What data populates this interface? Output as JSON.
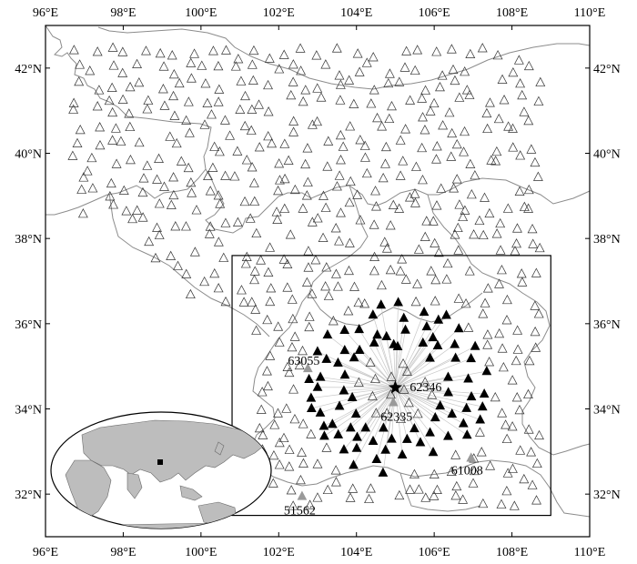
{
  "map": {
    "lon_range": [
      96,
      110
    ],
    "lat_range": [
      31,
      43
    ],
    "x_ticks": [
      {
        "value": 96,
        "label": "96°E"
      },
      {
        "value": 98,
        "label": "98°E"
      },
      {
        "value": 100,
        "label": "100°E"
      },
      {
        "value": 102,
        "label": "102°E"
      },
      {
        "value": 104,
        "label": "104°E"
      },
      {
        "value": 106,
        "label": "106°E"
      },
      {
        "value": 108,
        "label": "108°E"
      },
      {
        "value": 110,
        "label": "110°E"
      }
    ],
    "y_ticks": [
      {
        "value": 32,
        "label": "32°N"
      },
      {
        "value": 34,
        "label": "34°N"
      },
      {
        "value": 36,
        "label": "36°N"
      },
      {
        "value": 38,
        "label": "38°N"
      },
      {
        "value": 40,
        "label": "40°N"
      },
      {
        "value": 42,
        "label": "42°N"
      }
    ],
    "study_box": {
      "lon_min": 100.8,
      "lon_max": 109.0,
      "lat_min": 31.5,
      "lat_max": 37.6
    },
    "center_station": {
      "id": "62346",
      "lon": 105.0,
      "lat": 34.5
    },
    "labeled_stations": [
      {
        "id": "62346",
        "lon": 105.0,
        "lat": 34.5
      },
      {
        "id": "62335",
        "lon": 104.95,
        "lat": 34.15
      },
      {
        "id": "63055",
        "lon": 102.75,
        "lat": 34.95
      },
      {
        "id": "61008",
        "lon": 106.95,
        "lat": 32.85
      },
      {
        "id": "51562",
        "lon": 102.6,
        "lat": 31.95
      }
    ],
    "colors": {
      "hollow_station": "#333333",
      "paired_station": "#000000",
      "reference_station": "#9a9a9a",
      "ray": "#c8c8c8",
      "border": "#8c8c8c",
      "land": "#bdbdbd",
      "ocean": "#ffffff"
    },
    "icons": {
      "station": "triangle-icon",
      "center": "star-icon"
    }
  }
}
